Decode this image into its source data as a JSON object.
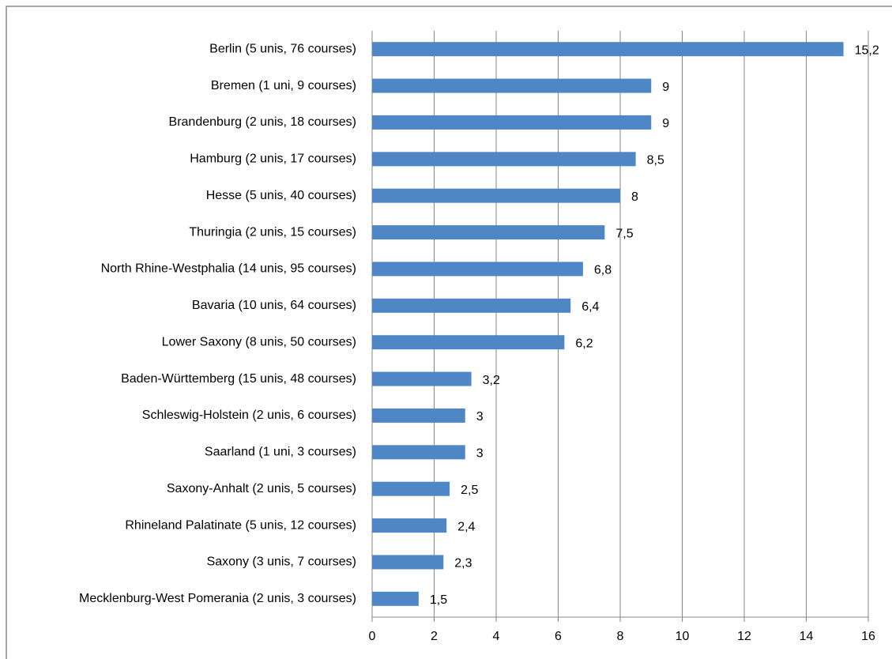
{
  "chart_data": {
    "type": "bar",
    "orientation": "horizontal",
    "categories": [
      "Berlin (5 unis, 76 courses)",
      "Bremen (1 uni, 9 courses)",
      "Brandenburg (2 unis, 18 courses)",
      "Hamburg (2 unis, 17 courses)",
      "Hesse (5 unis, 40 courses)",
      "Thuringia (2 unis, 15 courses)",
      "North Rhine-Westphalia (14 unis, 95 courses)",
      "Bavaria (10 unis, 64 courses)",
      "Lower Saxony (8 unis, 50 courses)",
      "Baden-Württemberg (15 unis, 48 courses)",
      "Schleswig-Holstein (2 unis, 6 courses)",
      "Saarland (1 uni, 3 courses)",
      "Saxony-Anhalt (2 unis, 5 courses)",
      "Rhineland Palatinate (5 unis, 12 courses)",
      "Saxony (3 unis, 7 courses)",
      "Mecklenburg-West Pomerania (2 unis, 3 courses)"
    ],
    "values": [
      15.2,
      9,
      9,
      8.5,
      8,
      7.5,
      6.8,
      6.4,
      6.2,
      3.2,
      3,
      3,
      2.5,
      2.4,
      2.3,
      1.5
    ],
    "value_labels": [
      "15,2",
      "9",
      "9",
      "8,5",
      "8",
      "7,5",
      "6,8",
      "6,4",
      "6,2",
      "3,2",
      "3",
      "3",
      "2,5",
      "2,4",
      "2,3",
      "1,5"
    ],
    "color": "#4f86c6",
    "xlim": [
      0,
      16
    ],
    "xticks": [
      0,
      2,
      4,
      6,
      8,
      10,
      12,
      14,
      16
    ],
    "grid": true
  }
}
